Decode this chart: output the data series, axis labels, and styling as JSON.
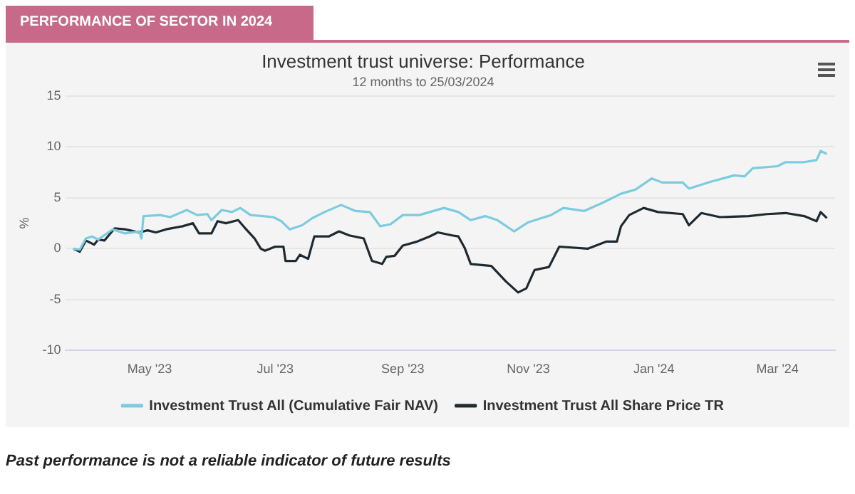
{
  "chart_data": {
    "type": "line",
    "title": "Investment trust universe: Performance",
    "subtitle": "12 months to 25/03/2024",
    "ylabel": "%",
    "annotations": [
      "PERFORMANCE OF SECTOR IN 2024",
      "Past performance is not a reliable indicator of future results"
    ],
    "xlim": [
      "2023-03-21",
      "2024-03-29"
    ],
    "xticks": [
      {
        "value": "2023-05-01",
        "label": "May '23"
      },
      {
        "value": "2023-07-01",
        "label": "Jul '23"
      },
      {
        "value": "2023-09-01",
        "label": "Sep '23"
      },
      {
        "value": "2023-11-01",
        "label": "Nov '23"
      },
      {
        "value": "2024-01-01",
        "label": "Jan '24"
      },
      {
        "value": "2024-03-01",
        "label": "Mar '24"
      }
    ],
    "ylim": [
      -10,
      15
    ],
    "yticks": [
      -10,
      -5,
      0,
      5,
      10,
      15
    ],
    "grid": "y",
    "legend": "bottom",
    "marker": "none",
    "line_style": "solid",
    "series": [
      {
        "name": "Investment Trust All (Cumulative Fair NAV)",
        "color": "#7ccbe0",
        "x": [
          "2023-03-25",
          "2023-03-28",
          "2023-03-31",
          "2023-04-03",
          "2023-04-06",
          "2023-04-13",
          "2023-04-19",
          "2023-04-26",
          "2023-04-27",
          "2023-04-28",
          "2023-05-06",
          "2023-05-11",
          "2023-05-19",
          "2023-05-24",
          "2023-05-29",
          "2023-05-31",
          "2023-06-05",
          "2023-06-10",
          "2023-06-14",
          "2023-06-19",
          "2023-06-25",
          "2023-06-30",
          "2023-07-04",
          "2023-07-08",
          "2023-07-14",
          "2023-07-19",
          "2023-07-25",
          "2023-08-02",
          "2023-08-09",
          "2023-08-16",
          "2023-08-21",
          "2023-08-26",
          "2023-09-01",
          "2023-09-09",
          "2023-09-21",
          "2023-09-28",
          "2023-10-04",
          "2023-10-11",
          "2023-10-17",
          "2023-10-25",
          "2023-11-01",
          "2023-11-12",
          "2023-11-18",
          "2023-11-28",
          "2023-12-07",
          "2023-12-16",
          "2023-12-23",
          "2023-12-31",
          "2024-01-05",
          "2024-01-15",
          "2024-01-18",
          "2024-01-29",
          "2024-02-09",
          "2024-02-14",
          "2024-02-18",
          "2024-03-01",
          "2024-03-05",
          "2024-03-14",
          "2024-03-20",
          "2024-03-22",
          "2024-03-25"
        ],
        "values": [
          0,
          -0.1,
          1.0,
          1.2,
          0.9,
          1.9,
          1.5,
          1.7,
          1.0,
          3.2,
          3.3,
          3.1,
          3.8,
          3.3,
          3.4,
          2.8,
          3.8,
          3.6,
          4.0,
          3.3,
          3.2,
          3.1,
          2.7,
          1.9,
          2.3,
          3.0,
          3.6,
          4.3,
          3.7,
          3.6,
          2.2,
          2.4,
          3.3,
          3.3,
          4.0,
          3.6,
          2.8,
          3.2,
          2.8,
          1.7,
          2.6,
          3.3,
          4.0,
          3.7,
          4.5,
          5.4,
          5.8,
          6.9,
          6.5,
          6.5,
          5.9,
          6.6,
          7.2,
          7.1,
          7.9,
          8.1,
          8.5,
          8.5,
          8.7,
          9.6,
          9.3
        ]
      },
      {
        "name": "Investment Trust All Share Price TR",
        "color": "#1f2a30",
        "x": [
          "2023-03-25",
          "2023-03-28",
          "2023-03-31",
          "2023-04-04",
          "2023-04-06",
          "2023-04-09",
          "2023-04-14",
          "2023-04-19",
          "2023-04-26",
          "2023-04-30",
          "2023-05-04",
          "2023-05-09",
          "2023-05-17",
          "2023-05-22",
          "2023-05-25",
          "2023-05-31",
          "2023-06-03",
          "2023-06-07",
          "2023-06-13",
          "2023-06-16",
          "2023-06-21",
          "2023-06-24",
          "2023-06-26",
          "2023-07-01",
          "2023-07-05",
          "2023-07-06",
          "2023-07-11",
          "2023-07-13",
          "2023-07-17",
          "2023-07-20",
          "2023-07-27",
          "2023-08-01",
          "2023-08-06",
          "2023-08-13",
          "2023-08-17",
          "2023-08-22",
          "2023-08-24",
          "2023-08-28",
          "2023-09-01",
          "2023-09-08",
          "2023-09-14",
          "2023-09-18",
          "2023-09-25",
          "2023-09-28",
          "2023-10-01",
          "2023-10-04",
          "2023-10-14",
          "2023-10-21",
          "2023-10-27",
          "2023-10-31",
          "2023-11-04",
          "2023-11-11",
          "2023-11-14",
          "2023-11-16",
          "2023-11-30",
          "2023-12-09",
          "2023-12-14",
          "2023-12-16",
          "2023-12-20",
          "2023-12-27",
          "2024-01-03",
          "2024-01-15",
          "2024-01-18",
          "2024-01-24",
          "2024-02-02",
          "2024-02-16",
          "2024-02-25",
          "2024-03-05",
          "2024-03-14",
          "2024-03-20",
          "2024-03-22",
          "2024-03-25"
        ],
        "values": [
          0,
          -0.3,
          0.8,
          0.4,
          0.9,
          0.8,
          2.0,
          1.9,
          1.6,
          1.8,
          1.6,
          1.9,
          2.2,
          2.5,
          1.5,
          1.5,
          2.7,
          2.5,
          2.8,
          2.1,
          1.0,
          0.0,
          -0.2,
          0.2,
          0.2,
          -1.2,
          -1.2,
          -0.6,
          -1.0,
          1.2,
          1.2,
          1.7,
          1.3,
          1.0,
          -1.2,
          -1.5,
          -0.8,
          -0.7,
          0.3,
          0.7,
          1.2,
          1.6,
          1.3,
          1.2,
          0.1,
          -1.5,
          -1.7,
          -3.2,
          -4.3,
          -3.9,
          -2.1,
          -1.8,
          -0.6,
          0.2,
          0.0,
          0.7,
          0.7,
          2.2,
          3.3,
          4.0,
          3.6,
          3.4,
          2.3,
          3.5,
          3.1,
          3.2,
          3.4,
          3.5,
          3.2,
          2.7,
          3.6,
          3.0
        ]
      }
    ]
  }
}
